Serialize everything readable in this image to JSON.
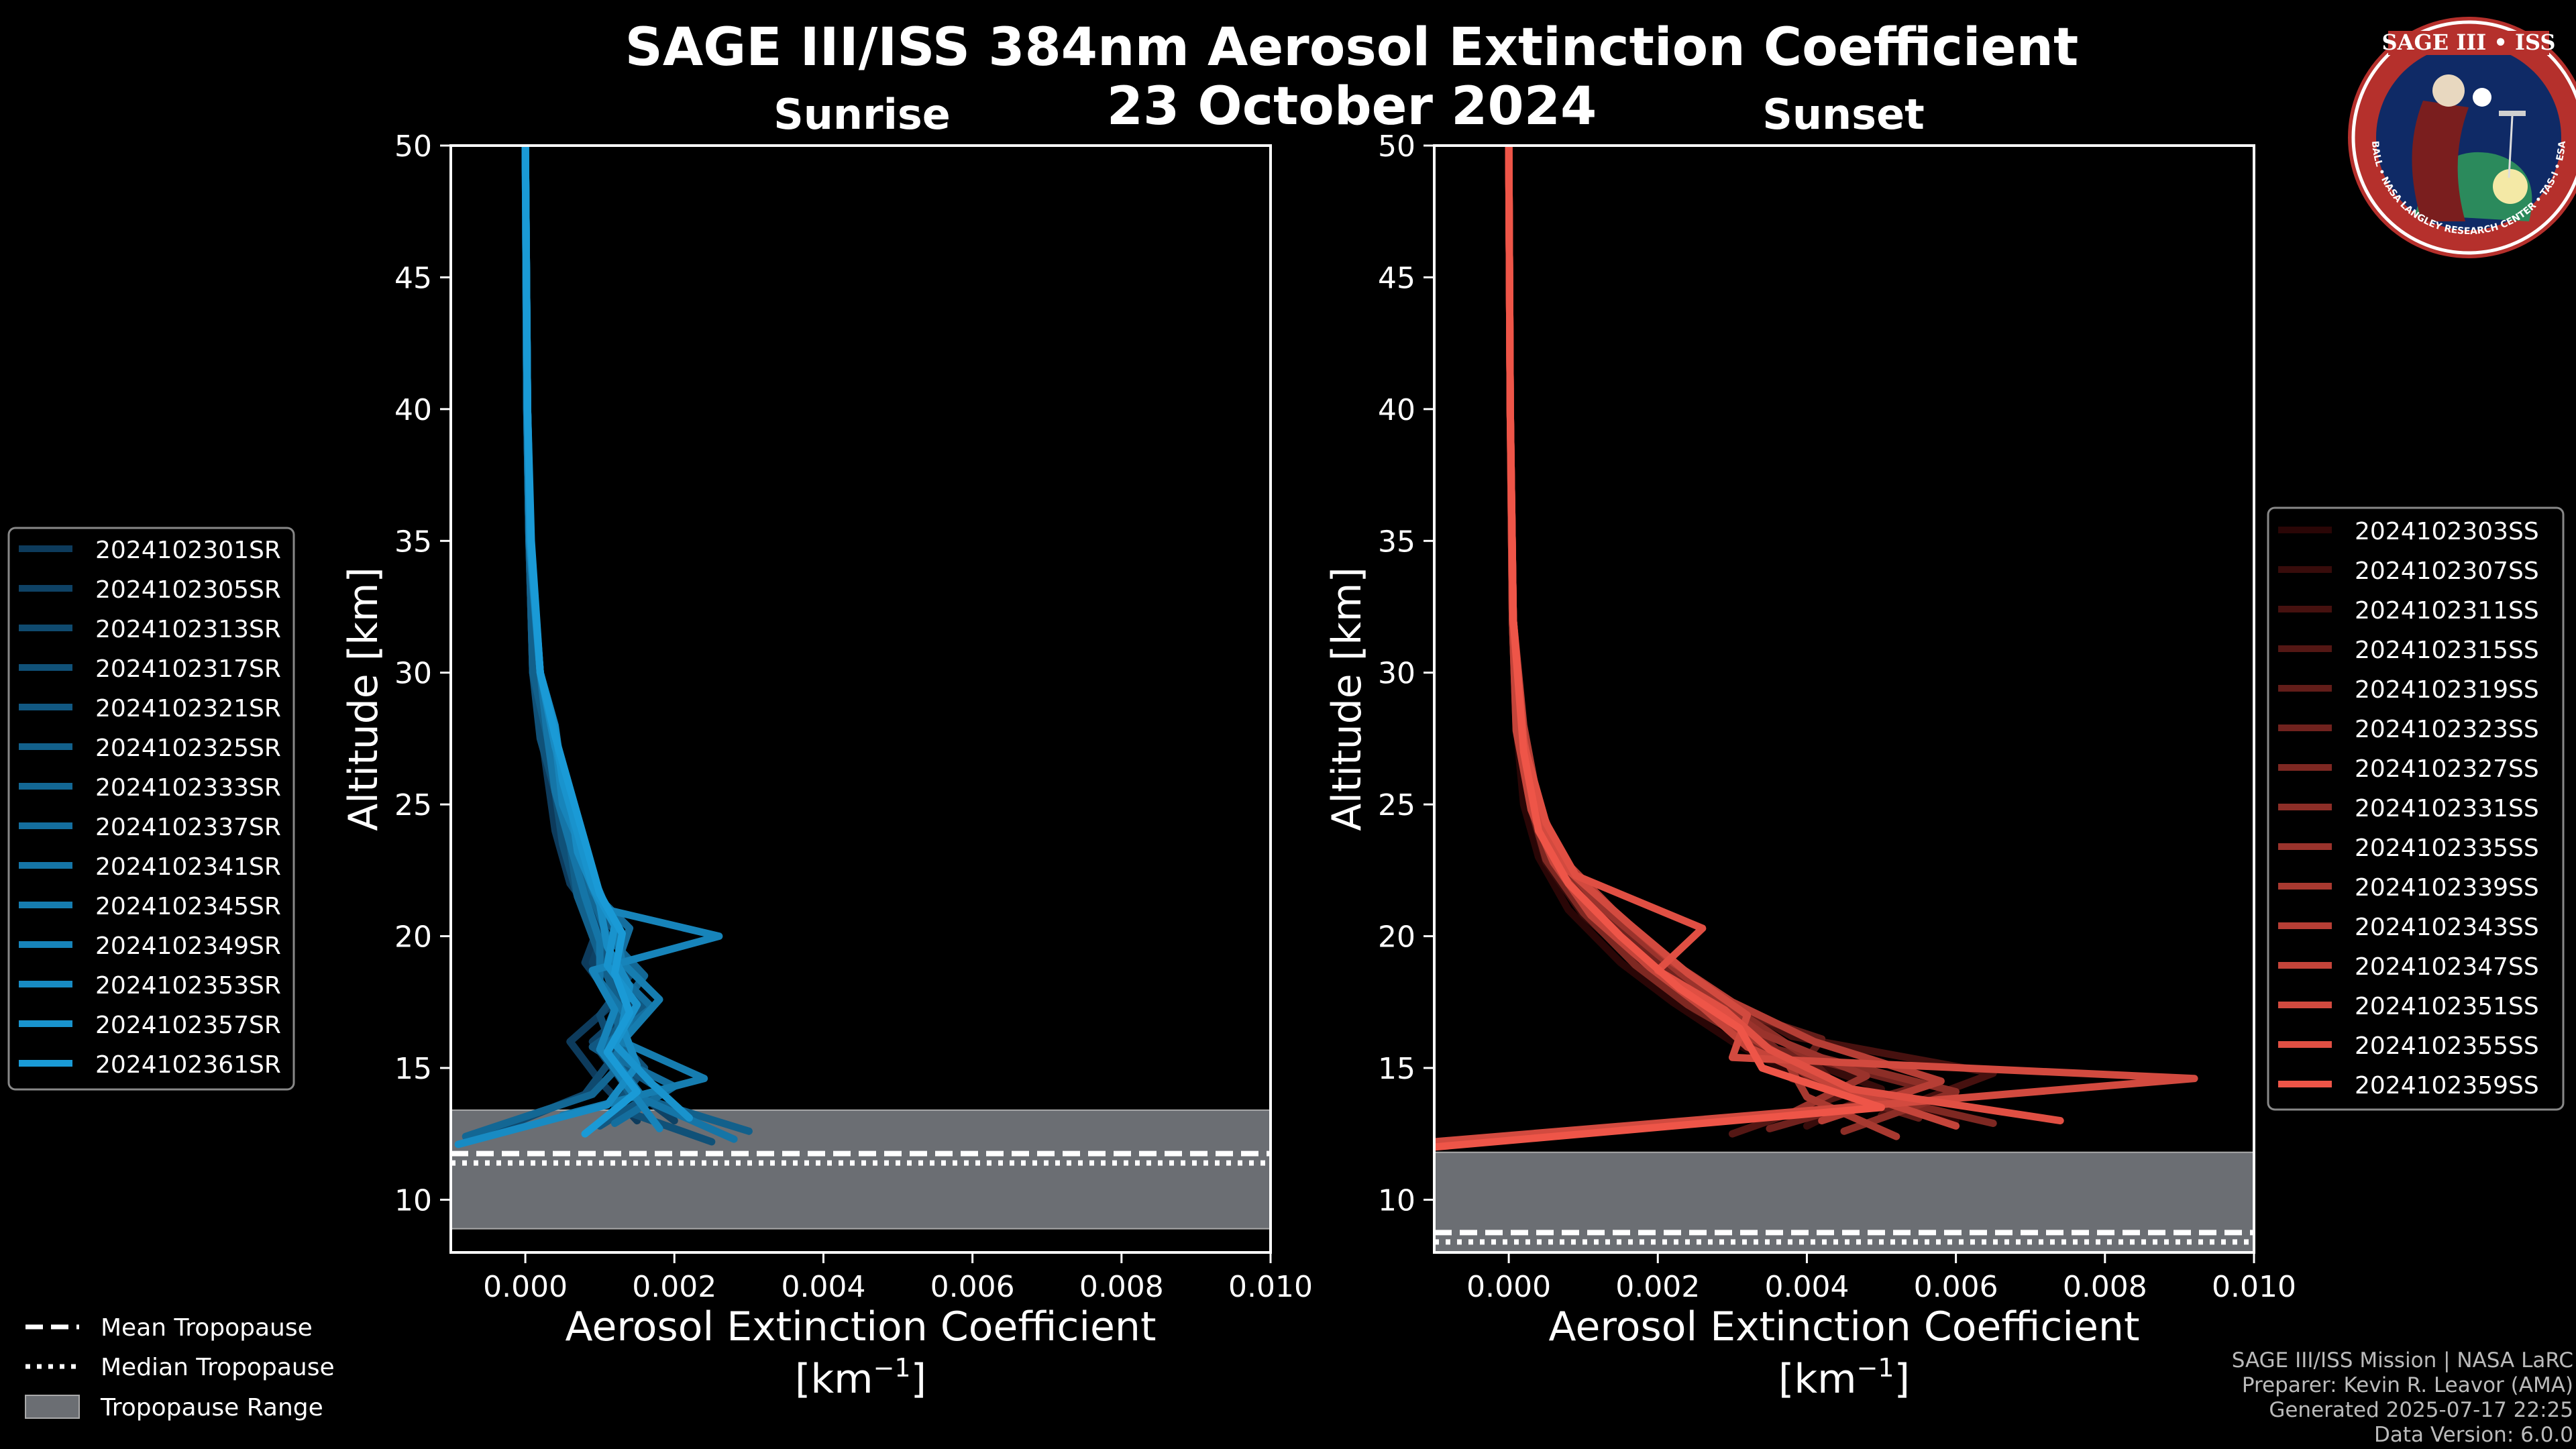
{
  "figure": {
    "title_line1": "SAGE III/ISS 384nm Aerosol Extinction Coefficient",
    "title_line2": "23 October 2024",
    "logo_text": "SAGE III • ISS",
    "logo_ring_text": "BALL • NASA LANGLEY RESEARCH CENTER • TAS-I • ESA",
    "credits": [
      "SAGE III/ISS Mission | NASA LaRC",
      "Preparer: Kevin R. Leavor (AMA)",
      "Generated 2025-07-17 22:25",
      "Data Version: 6.0.0"
    ],
    "common_legend": [
      "Mean Tropopause",
      "Median Tropopause",
      "Tropopause Range"
    ]
  },
  "chart_data": [
    {
      "type": "line",
      "panel": "sunrise",
      "title": "Sunrise",
      "xlabel": "Aerosol Extinction Coefficient",
      "xlabel_units": "[km",
      "xlabel_exp": "−1",
      "xlabel_close": "]",
      "ylabel": "Altitude [km]",
      "xlim": [
        -0.001,
        0.01
      ],
      "ylim": [
        8,
        50
      ],
      "xticks": [
        0.0,
        0.002,
        0.004,
        0.006,
        0.008,
        0.01
      ],
      "xtick_labels": [
        "0.000",
        "0.002",
        "0.004",
        "0.006",
        "0.008",
        "0.010"
      ],
      "yticks": [
        10,
        15,
        20,
        25,
        30,
        35,
        40,
        45,
        50
      ],
      "tropopause": {
        "mean": 11.6,
        "median": 11.6,
        "range": [
          8.9,
          13.4
        ]
      },
      "series_color_start": "#0d3b5c",
      "series_color_end": "#1a9ad6",
      "series": [
        {
          "name": "2024102301SR",
          "x": [
            0.0015,
            0.001,
            0.0006,
            0.0012,
            0.0008,
            0.001,
            0.0006,
            0.0004,
            0.0003,
            0.0002,
            0.0001,
            5e-05,
            2e-05,
            0.0
          ],
          "y": [
            13.0,
            14.5,
            16,
            17.5,
            19,
            20.5,
            22,
            24,
            26,
            28,
            30,
            35,
            40,
            50
          ]
        },
        {
          "name": "2024102305SR",
          "x": [
            0.002,
            0.0013,
            0.0009,
            0.0015,
            0.0009,
            0.0011,
            0.0007,
            0.0005,
            0.0004,
            0.0003,
            0.0001,
            5e-05,
            2e-05,
            0.0
          ],
          "y": [
            13.0,
            14.5,
            16,
            17.5,
            19,
            20.5,
            22,
            24,
            26,
            28,
            30,
            35,
            40,
            50
          ]
        },
        {
          "name": "2024102313SR",
          "x": [
            -0.0005,
            0.0008,
            0.0012,
            0.001,
            0.0014,
            0.0009,
            0.0008,
            0.0006,
            0.0004,
            0.0003,
            0.0002,
            6e-05,
            2e-05,
            0.0
          ],
          "y": [
            12.5,
            14.0,
            15.5,
            17.0,
            18.5,
            20.0,
            21.5,
            23.5,
            25.5,
            27.5,
            30,
            35,
            40,
            50
          ]
        },
        {
          "name": "2024102317SR",
          "x": [
            0.0025,
            0.0012,
            0.0016,
            0.0011,
            0.0013,
            0.001,
            0.0007,
            0.0005,
            0.0004,
            0.0002,
            0.0001,
            5e-05,
            2e-05,
            0.0
          ],
          "y": [
            12.2,
            13.5,
            15.0,
            16.5,
            18.0,
            19.5,
            21.5,
            23.5,
            25.5,
            27.5,
            30,
            35,
            40,
            50
          ]
        },
        {
          "name": "2024102321SR",
          "x": [
            0.001,
            0.0018,
            0.0009,
            0.0016,
            0.001,
            0.0012,
            0.0008,
            0.0006,
            0.0005,
            0.0003,
            0.0002,
            6e-05,
            3e-05,
            0.0
          ],
          "y": [
            12.8,
            14.2,
            15.8,
            17.2,
            18.8,
            20.2,
            21.8,
            23.8,
            25.8,
            27.8,
            30,
            35,
            40,
            50
          ]
        },
        {
          "name": "2024102325SR",
          "x": [
            0.003,
            0.0014,
            0.0011,
            0.0013,
            0.0011,
            0.0009,
            0.0007,
            0.0006,
            0.0004,
            0.0003,
            0.0001,
            5e-05,
            2e-05,
            0.0
          ],
          "y": [
            12.6,
            14.0,
            15.5,
            17.0,
            18.5,
            20.0,
            21.5,
            23.5,
            25.5,
            27.5,
            30,
            35,
            40,
            50
          ]
        },
        {
          "name": "2024102333SR",
          "x": [
            -0.0008,
            0.0009,
            0.0014,
            0.0012,
            0.0016,
            0.0011,
            0.0009,
            0.0006,
            0.0005,
            0.0003,
            0.0002,
            6e-05,
            3e-05,
            0.0
          ],
          "y": [
            12.4,
            14.0,
            15.5,
            17.0,
            18.5,
            20.0,
            21.5,
            23.5,
            25.5,
            27.5,
            30,
            35,
            40,
            50
          ]
        },
        {
          "name": "2024102337SR",
          "x": [
            0.0012,
            0.002,
            0.001,
            0.0017,
            0.0012,
            0.0014,
            0.0009,
            0.0007,
            0.0005,
            0.0004,
            0.0002,
            6e-05,
            3e-05,
            0.0
          ],
          "y": [
            12.9,
            14.3,
            15.7,
            17.3,
            18.7,
            20.3,
            21.7,
            23.7,
            25.7,
            27.7,
            30,
            35,
            40,
            50
          ]
        },
        {
          "name": "2024102341SR",
          "x": [
            0.0028,
            0.0016,
            0.0012,
            0.0014,
            0.001,
            0.001,
            0.0008,
            0.0006,
            0.0004,
            0.0003,
            0.0002,
            5e-05,
            2e-05,
            0.0
          ],
          "y": [
            12.3,
            13.8,
            15.3,
            16.8,
            18.3,
            19.8,
            21.5,
            23.5,
            25.5,
            27.5,
            30,
            35,
            40,
            50
          ]
        },
        {
          "name": "2024102345SR",
          "x": [
            0.0005,
            0.0024,
            0.0013,
            0.0018,
            0.0013,
            0.0012,
            0.0009,
            0.0007,
            0.0005,
            0.0004,
            0.0002,
            7e-05,
            3e-05,
            0.0
          ],
          "y": [
            13.2,
            14.6,
            16.0,
            17.6,
            19.0,
            20.5,
            22.0,
            24.0,
            26.0,
            28.0,
            30,
            35,
            40,
            50
          ]
        },
        {
          "name": "2024102349SR",
          "x": [
            0.0018,
            0.0014,
            0.001,
            0.0012,
            0.0009,
            0.0026,
            0.0011,
            0.0008,
            0.0005,
            0.0004,
            0.0002,
            7e-05,
            3e-05,
            0.0
          ],
          "y": [
            12.7,
            14.2,
            15.7,
            17.2,
            18.7,
            20.0,
            21.0,
            23.0,
            25.0,
            27.5,
            30,
            35,
            40,
            50
          ]
        },
        {
          "name": "2024102353SR",
          "x": [
            -0.0009,
            0.0011,
            0.0015,
            0.0013,
            0.0014,
            0.0011,
            0.001,
            0.0007,
            0.0006,
            0.0004,
            0.0002,
            6e-05,
            3e-05,
            0.0
          ],
          "y": [
            12.1,
            13.6,
            15.1,
            16.6,
            18.1,
            19.6,
            21.2,
            23.2,
            25.2,
            27.2,
            30,
            35,
            40,
            50
          ]
        },
        {
          "name": "2024102357SR",
          "x": [
            0.0022,
            0.0017,
            0.0012,
            0.0015,
            0.0011,
            0.0012,
            0.0009,
            0.0007,
            0.0005,
            0.0004,
            0.0002,
            7e-05,
            3e-05,
            0.0
          ],
          "y": [
            13.1,
            14.4,
            15.9,
            17.4,
            18.9,
            20.4,
            21.9,
            23.9,
            25.9,
            27.9,
            30,
            35,
            40,
            50
          ]
        },
        {
          "name": "2024102361SR",
          "x": [
            0.0008,
            0.0015,
            0.0011,
            0.0014,
            0.0012,
            0.0013,
            0.001,
            0.0008,
            0.0006,
            0.0004,
            0.0002,
            8e-05,
            3e-05,
            0.0
          ],
          "y": [
            12.5,
            14.1,
            15.6,
            17.1,
            18.6,
            20.1,
            21.6,
            23.6,
            25.6,
            27.6,
            30,
            35,
            40,
            50
          ]
        }
      ]
    },
    {
      "type": "line",
      "panel": "sunset",
      "title": "Sunset",
      "xlabel": "Aerosol Extinction Coefficient",
      "xlabel_units": "[km",
      "xlabel_exp": "−1",
      "xlabel_close": "]",
      "ylabel": "Altitude [km]",
      "xlim": [
        -0.001,
        0.01
      ],
      "ylim": [
        8,
        50
      ],
      "xticks": [
        0.0,
        0.002,
        0.004,
        0.006,
        0.008,
        0.01
      ],
      "xtick_labels": [
        "0.000",
        "0.002",
        "0.004",
        "0.006",
        "0.008",
        "0.010"
      ],
      "yticks": [
        10,
        15,
        20,
        25,
        30,
        35,
        40,
        45,
        50
      ],
      "tropopause": {
        "mean": 8.6,
        "median": 8.6,
        "range": [
          8.0,
          11.8
        ]
      },
      "series_color_start": "#2a0606",
      "series_color_end": "#ee5548",
      "series": [
        {
          "name": "2024102303SS",
          "x": [
            0.006,
            0.004,
            0.003,
            0.0022,
            0.0015,
            0.0008,
            0.0004,
            0.0002,
            0.0001,
            5e-05,
            2e-05,
            0.0
          ],
          "y": [
            13.0,
            14.5,
            16.0,
            17.5,
            19.0,
            21.0,
            23.0,
            25.0,
            28.0,
            32.0,
            40.0,
            50
          ]
        },
        {
          "name": "2024102307SS",
          "x": [
            0.004,
            0.005,
            0.0035,
            0.0025,
            0.0018,
            0.001,
            0.0005,
            0.0003,
            0.0001,
            5e-05,
            2e-05,
            0.0
          ],
          "y": [
            12.8,
            14.2,
            15.8,
            17.2,
            18.8,
            20.8,
            22.8,
            24.8,
            27.8,
            32.0,
            40.0,
            50
          ]
        },
        {
          "name": "2024102311SS",
          "x": [
            0.005,
            0.0065,
            0.0038,
            0.0028,
            0.002,
            0.0012,
            0.0006,
            0.0003,
            0.0001,
            5e-05,
            2e-05,
            0.0
          ],
          "y": [
            13.2,
            14.8,
            16.2,
            17.8,
            19.2,
            21.0,
            23.0,
            25.0,
            28.0,
            32.0,
            40.0,
            50
          ]
        },
        {
          "name": "2024102315SS",
          "x": [
            0.003,
            0.0045,
            0.004,
            0.003,
            0.0022,
            0.0014,
            0.0007,
            0.0004,
            0.0002,
            6e-05,
            2e-05,
            0.0
          ],
          "y": [
            12.5,
            14.0,
            15.5,
            17.0,
            18.5,
            20.5,
            22.5,
            24.5,
            27.5,
            32.0,
            40.0,
            50
          ]
        },
        {
          "name": "2024102319SS",
          "x": [
            0.0055,
            0.0038,
            0.0042,
            0.0026,
            0.0019,
            0.0011,
            0.0006,
            0.0003,
            0.0001,
            5e-05,
            2e-05,
            0.0
          ],
          "y": [
            13.1,
            14.6,
            16.1,
            17.6,
            19.1,
            21.0,
            23.0,
            25.0,
            28.0,
            32.0,
            40.0,
            50
          ]
        },
        {
          "name": "2024102323SS",
          "x": [
            0.0035,
            0.0055,
            0.0036,
            0.0029,
            0.0021,
            0.0013,
            0.0007,
            0.0004,
            0.0002,
            6e-05,
            2e-05,
            0.0
          ],
          "y": [
            12.7,
            14.3,
            15.7,
            17.3,
            18.7,
            20.7,
            22.7,
            24.7,
            27.7,
            32.0,
            40.0,
            50
          ]
        },
        {
          "name": "2024102327SS",
          "x": [
            0.0065,
            0.0042,
            0.0033,
            0.0024,
            0.0017,
            0.001,
            0.0005,
            0.0003,
            0.0001,
            5e-05,
            2e-05,
            0.0
          ],
          "y": [
            12.9,
            14.4,
            15.9,
            17.4,
            18.9,
            20.9,
            22.9,
            24.9,
            27.9,
            32.0,
            40.0,
            50
          ]
        },
        {
          "name": "2024102331SS",
          "x": [
            0.0045,
            0.006,
            0.0039,
            0.0031,
            0.0023,
            0.0015,
            0.0008,
            0.0004,
            0.0002,
            6e-05,
            2e-05,
            0.0
          ],
          "y": [
            12.6,
            14.1,
            15.6,
            17.1,
            18.6,
            20.6,
            22.6,
            24.6,
            27.6,
            32.0,
            40.0,
            50
          ]
        },
        {
          "name": "2024102335SS",
          "x": [
            0.0038,
            0.0048,
            0.0034,
            0.0027,
            0.002,
            0.0012,
            0.0006,
            0.0003,
            0.0001,
            5e-05,
            2e-05,
            0.0
          ],
          "y": [
            13.3,
            14.7,
            16.3,
            17.7,
            19.3,
            21.2,
            23.2,
            25.2,
            28.2,
            32.0,
            40.0,
            50
          ]
        },
        {
          "name": "2024102339SS",
          "x": [
            0.0052,
            0.004,
            0.0037,
            0.0028,
            0.0021,
            0.0013,
            0.0007,
            0.0004,
            0.0002,
            6e-05,
            2e-05,
            0.0
          ],
          "y": [
            12.4,
            13.9,
            15.4,
            16.9,
            18.4,
            20.4,
            22.4,
            24.4,
            27.4,
            32.0,
            40.0,
            50
          ]
        },
        {
          "name": "2024102343SS",
          "x": [
            0.0042,
            0.0058,
            0.0041,
            0.003,
            0.0022,
            0.0014,
            0.0007,
            0.0004,
            0.0002,
            6e-05,
            2e-05,
            0.0
          ],
          "y": [
            13.0,
            14.5,
            16.0,
            17.5,
            19.0,
            21.0,
            23.0,
            25.0,
            28.0,
            32.0,
            40.0,
            50
          ]
        },
        {
          "name": "2024102347SS",
          "x": [
            0.006,
            0.0044,
            0.0032,
            0.0026,
            0.0019,
            0.0011,
            0.0006,
            0.0003,
            0.0001,
            5e-05,
            2e-05,
            0.0
          ],
          "y": [
            12.8,
            14.3,
            15.8,
            17.3,
            18.8,
            20.8,
            22.8,
            24.8,
            27.8,
            32.0,
            40.0,
            50
          ]
        },
        {
          "name": "2024102351SS",
          "x": [
            -0.001,
            0.0092,
            0.003,
            0.0032,
            0.0024,
            0.0016,
            0.0008,
            0.0004,
            0.0002,
            6e-05,
            2e-05,
            0.0
          ],
          "y": [
            12.2,
            14.6,
            15.4,
            17.0,
            18.6,
            20.5,
            22.5,
            24.5,
            27.5,
            32.0,
            40.0,
            50
          ]
        },
        {
          "name": "2024102355SS",
          "x": [
            0.0074,
            0.0046,
            0.0035,
            0.0029,
            0.002,
            0.0026,
            0.0009,
            0.0005,
            0.0002,
            6e-05,
            2e-05,
            0.0
          ],
          "y": [
            13.0,
            14.2,
            15.7,
            17.2,
            18.7,
            20.3,
            22.3,
            24.3,
            27.3,
            32.0,
            40.0,
            50
          ]
        },
        {
          "name": "2024102359SS",
          "x": [
            -0.001,
            0.005,
            0.0034,
            0.0031,
            0.0023,
            0.0015,
            0.0008,
            0.0004,
            0.0002,
            6e-05,
            2e-05,
            0.0
          ],
          "y": [
            12.0,
            13.5,
            15.0,
            16.5,
            18.0,
            20.0,
            22.0,
            24.0,
            27.0,
            32.0,
            40.0,
            50
          ]
        }
      ]
    }
  ]
}
